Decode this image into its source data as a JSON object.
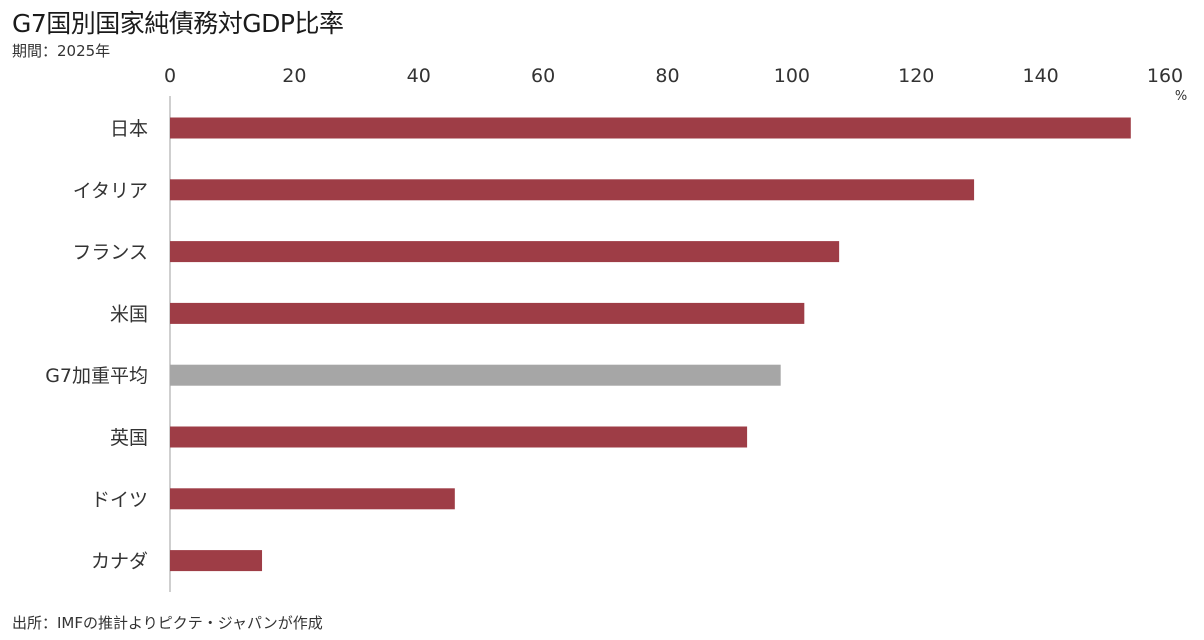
{
  "header": {
    "title": "G7国別国家純債務対GDP比率",
    "subtitle": "期間：2025年"
  },
  "footer": {
    "source": "出所：IMFの推計よりピクテ・ジャパンが作成"
  },
  "colors": {
    "bar": "#9e3d46",
    "highlight_bar": "#a6a6a6",
    "axis": "#bfbfbf"
  },
  "chart_data": {
    "type": "bar",
    "orientation": "horizontal",
    "title": "G7国別国家純債務対GDP比率",
    "subtitle": "期間：2025年",
    "unit": "%",
    "categories": [
      "日本",
      "イタリア",
      "フランス",
      "米国",
      "G7加重平均",
      "英国",
      "ドイツ",
      "カナダ"
    ],
    "values": [
      154.5,
      129.3,
      107.6,
      102.0,
      98.2,
      92.8,
      45.8,
      14.8
    ],
    "highlight": "G7加重平均",
    "xlim": [
      0,
      160
    ],
    "xticks": [
      0,
      20,
      40,
      60,
      80,
      100,
      120,
      140,
      160
    ],
    "xtick_labels": [
      "0",
      "20",
      "40",
      "60",
      "80",
      "100",
      "120",
      "140",
      "160"
    ],
    "axis_position": "top",
    "grid": false,
    "legend": "none"
  }
}
